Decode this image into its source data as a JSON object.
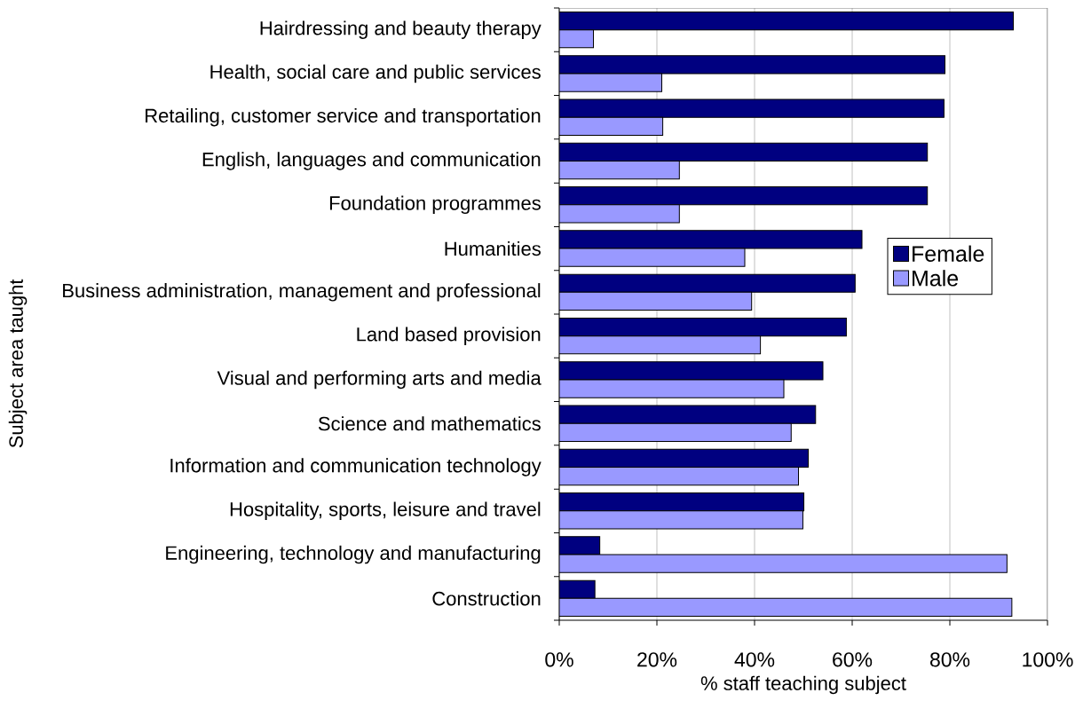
{
  "chart_data": {
    "type": "bar",
    "orientation": "horizontal",
    "xlabel": "% staff teaching subject",
    "ylabel": "Subject area taught",
    "categories": [
      "Hairdressing and beauty therapy",
      "Health, social care and public services",
      "Retailing, customer service and transportation",
      "English, languages and communication",
      "Foundation programmes",
      "Humanities",
      "Business administration, management and professional",
      "Land based provision",
      "Visual and performing arts and media",
      "Science and mathematics",
      "Information and communication technology",
      "Hospitality, sports, leisure and travel",
      "Engineering, technology and manufacturing",
      "Construction"
    ],
    "series": [
      {
        "name": "Female",
        "color": "#000080",
        "values": [
          93,
          79,
          78.8,
          75.4,
          75.4,
          62,
          60.6,
          58.8,
          54,
          52.5,
          51,
          50.1,
          8.3,
          7.3
        ]
      },
      {
        "name": "Male",
        "color": "#9999ff",
        "values": [
          7,
          21,
          21.2,
          24.6,
          24.6,
          38,
          39.4,
          41.2,
          46,
          47.5,
          49,
          49.9,
          91.7,
          92.7
        ]
      }
    ],
    "xlim": [
      0,
      100
    ],
    "xticks": [
      {
        "value": 0,
        "label": "0%"
      },
      {
        "value": 20,
        "label": "20%"
      },
      {
        "value": 40,
        "label": "40%"
      },
      {
        "value": 60,
        "label": "60%"
      },
      {
        "value": 80,
        "label": "80%"
      },
      {
        "value": 100,
        "label": "100%"
      }
    ],
    "grid": "x",
    "legend": "right"
  }
}
